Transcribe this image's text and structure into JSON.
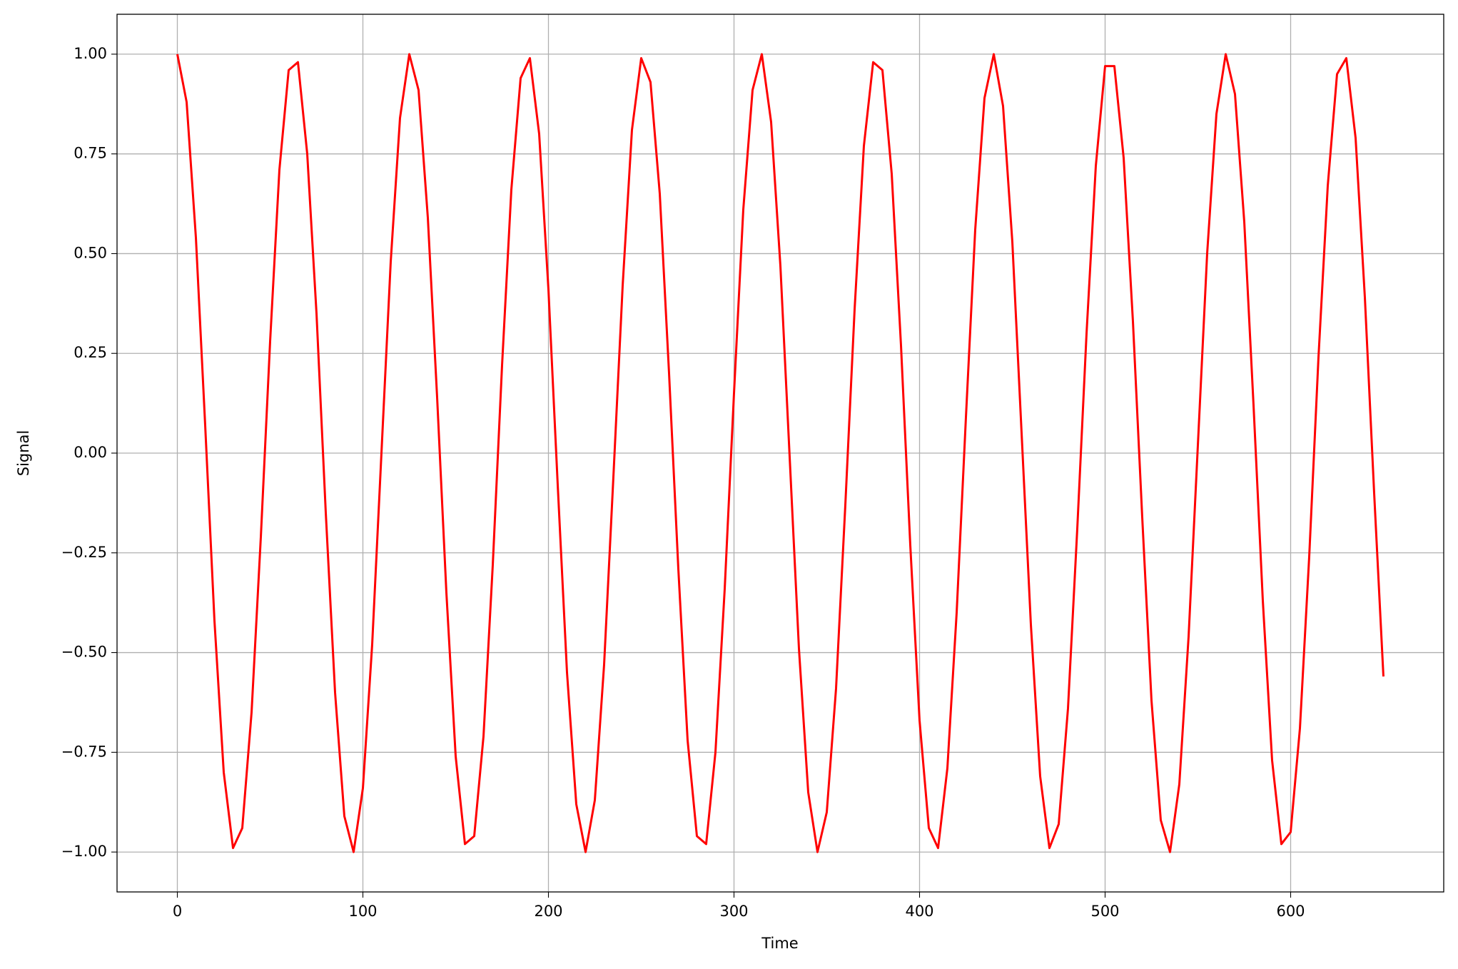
{
  "chart_data": {
    "type": "line",
    "xlabel": "Time",
    "ylabel": "Signal",
    "x": [
      0,
      5,
      10,
      15,
      20,
      25,
      30,
      35,
      40,
      45,
      50,
      55,
      60,
      65,
      70,
      75,
      80,
      85,
      90,
      95,
      100,
      105,
      110,
      115,
      120,
      125,
      130,
      135,
      140,
      145,
      150,
      155,
      160,
      165,
      170,
      175,
      180,
      185,
      190,
      195,
      200,
      205,
      210,
      215,
      220,
      225,
      230,
      235,
      240,
      245,
      250,
      255,
      260,
      265,
      270,
      275,
      280,
      285,
      290,
      295,
      300,
      305,
      310,
      315,
      320,
      325,
      330,
      335,
      340,
      345,
      350,
      355,
      360,
      365,
      370,
      375,
      380,
      385,
      390,
      395,
      400,
      405,
      410,
      415,
      420,
      425,
      430,
      435,
      440,
      445,
      450,
      455,
      460,
      465,
      470,
      475,
      480,
      485,
      490,
      495,
      500,
      505,
      510,
      515,
      520,
      525,
      530,
      535,
      540,
      545,
      550,
      555,
      560,
      565,
      570,
      575,
      580,
      585,
      590,
      595,
      600,
      605,
      610,
      615,
      620,
      625,
      630,
      635,
      640,
      645,
      650
    ],
    "values": [
      1.0,
      0.88,
      0.54,
      0.07,
      -0.42,
      -0.8,
      -0.99,
      -0.94,
      -0.65,
      -0.21,
      0.28,
      0.71,
      0.96,
      0.98,
      0.75,
      0.35,
      -0.15,
      -0.6,
      -0.91,
      -1.0,
      -0.84,
      -0.48,
      0.0,
      0.48,
      0.84,
      1.0,
      0.91,
      0.59,
      0.14,
      -0.35,
      -0.76,
      -0.98,
      -0.96,
      -0.71,
      -0.28,
      0.22,
      0.66,
      0.94,
      0.99,
      0.8,
      0.41,
      -0.08,
      -0.55,
      -0.88,
      -1.0,
      -0.87,
      -0.53,
      -0.06,
      0.42,
      0.81,
      0.99,
      0.93,
      0.65,
      0.2,
      -0.29,
      -0.72,
      -0.96,
      -0.98,
      -0.75,
      -0.34,
      0.15,
      0.61,
      0.91,
      1.0,
      0.83,
      0.47,
      -0.01,
      -0.49,
      -0.85,
      -1.0,
      -0.9,
      -0.59,
      -0.13,
      0.36,
      0.77,
      0.98,
      0.96,
      0.7,
      0.27,
      -0.23,
      -0.67,
      -0.94,
      -0.99,
      -0.79,
      -0.4,
      0.09,
      0.56,
      0.89,
      1.0,
      0.87,
      0.53,
      0.05,
      -0.43,
      -0.81,
      -0.99,
      -0.93,
      -0.64,
      -0.19,
      0.3,
      0.72,
      0.97,
      0.97,
      0.74,
      0.33,
      -0.16,
      -0.62,
      -0.92,
      -1.0,
      -0.83,
      -0.46,
      0.02,
      0.5,
      0.85,
      1.0,
      0.9,
      0.58,
      0.12,
      -0.37,
      -0.77,
      -0.98,
      -0.95,
      -0.69,
      -0.26,
      0.24,
      0.67,
      0.95,
      0.99,
      0.79,
      0.39,
      -0.1,
      -0.56
    ],
    "color": "#ff0000",
    "xlim": [
      -32.5,
      682.5
    ],
    "xticks": [
      0,
      100,
      200,
      300,
      400,
      500,
      600
    ],
    "ylim": [
      -1.1,
      1.1
    ],
    "yticks": [
      {
        "value": -1,
        "label": "−1.00"
      },
      {
        "value": -0.75,
        "label": "−0.75"
      },
      {
        "value": -0.5,
        "label": "−0.50"
      },
      {
        "value": -0.25,
        "label": "−0.25"
      },
      {
        "value": 0,
        "label": "0.00"
      },
      {
        "value": 0.25,
        "label": "0.25"
      },
      {
        "value": 0.5,
        "label": "0.50"
      },
      {
        "value": 0.75,
        "label": "0.75"
      },
      {
        "value": 1,
        "label": "1.00"
      }
    ],
    "grid": true
  }
}
